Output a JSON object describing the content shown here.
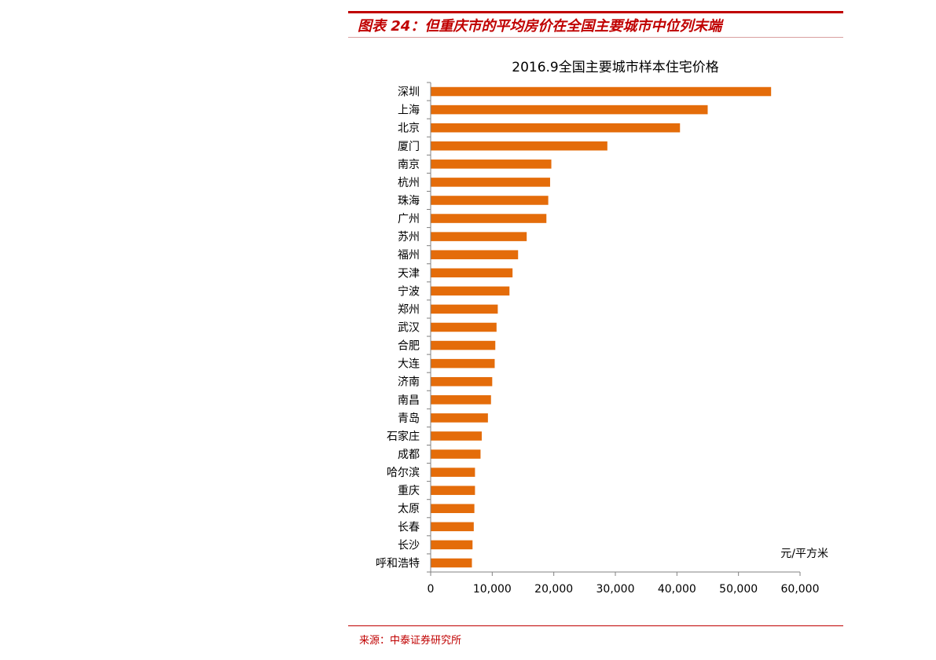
{
  "header": {
    "title": "图表 24：但重庆市的平均房价在全国主要城市中位列末端"
  },
  "footer": {
    "source": "来源：中泰证券研究所"
  },
  "colors": {
    "bar": "#e46c0a",
    "accent": "#c00000",
    "axis": "#808080",
    "text": "#000000"
  },
  "chart_data": {
    "type": "bar",
    "orientation": "horizontal",
    "title": "2016.9全国主要城市样本住宅价格",
    "unit_label": "元/平方米",
    "xlabel": "",
    "ylabel": "",
    "xlim": [
      0,
      60000
    ],
    "x_ticks": [
      0,
      10000,
      20000,
      30000,
      40000,
      50000,
      60000
    ],
    "x_tick_labels": [
      "0",
      "10,000",
      "20,000",
      "30,000",
      "40,000",
      "50,000",
      "60,000"
    ],
    "grid": false,
    "legend": "none",
    "categories": [
      "深圳",
      "上海",
      "北京",
      "厦门",
      "南京",
      "杭州",
      "珠海",
      "广州",
      "苏州",
      "福州",
      "天津",
      "宁波",
      "郑州",
      "武汉",
      "合肥",
      "大连",
      "济南",
      "南昌",
      "青岛",
      "石家庄",
      "成都",
      "哈尔滨",
      "重庆",
      "太原",
      "长春",
      "长沙",
      "呼和浩特"
    ],
    "values": [
      55300,
      45000,
      40500,
      28700,
      19600,
      19400,
      19100,
      18800,
      15600,
      14200,
      13300,
      12800,
      10900,
      10700,
      10500,
      10400,
      10000,
      9800,
      9300,
      8300,
      8100,
      7200,
      7200,
      7100,
      7000,
      6800,
      6700
    ]
  }
}
